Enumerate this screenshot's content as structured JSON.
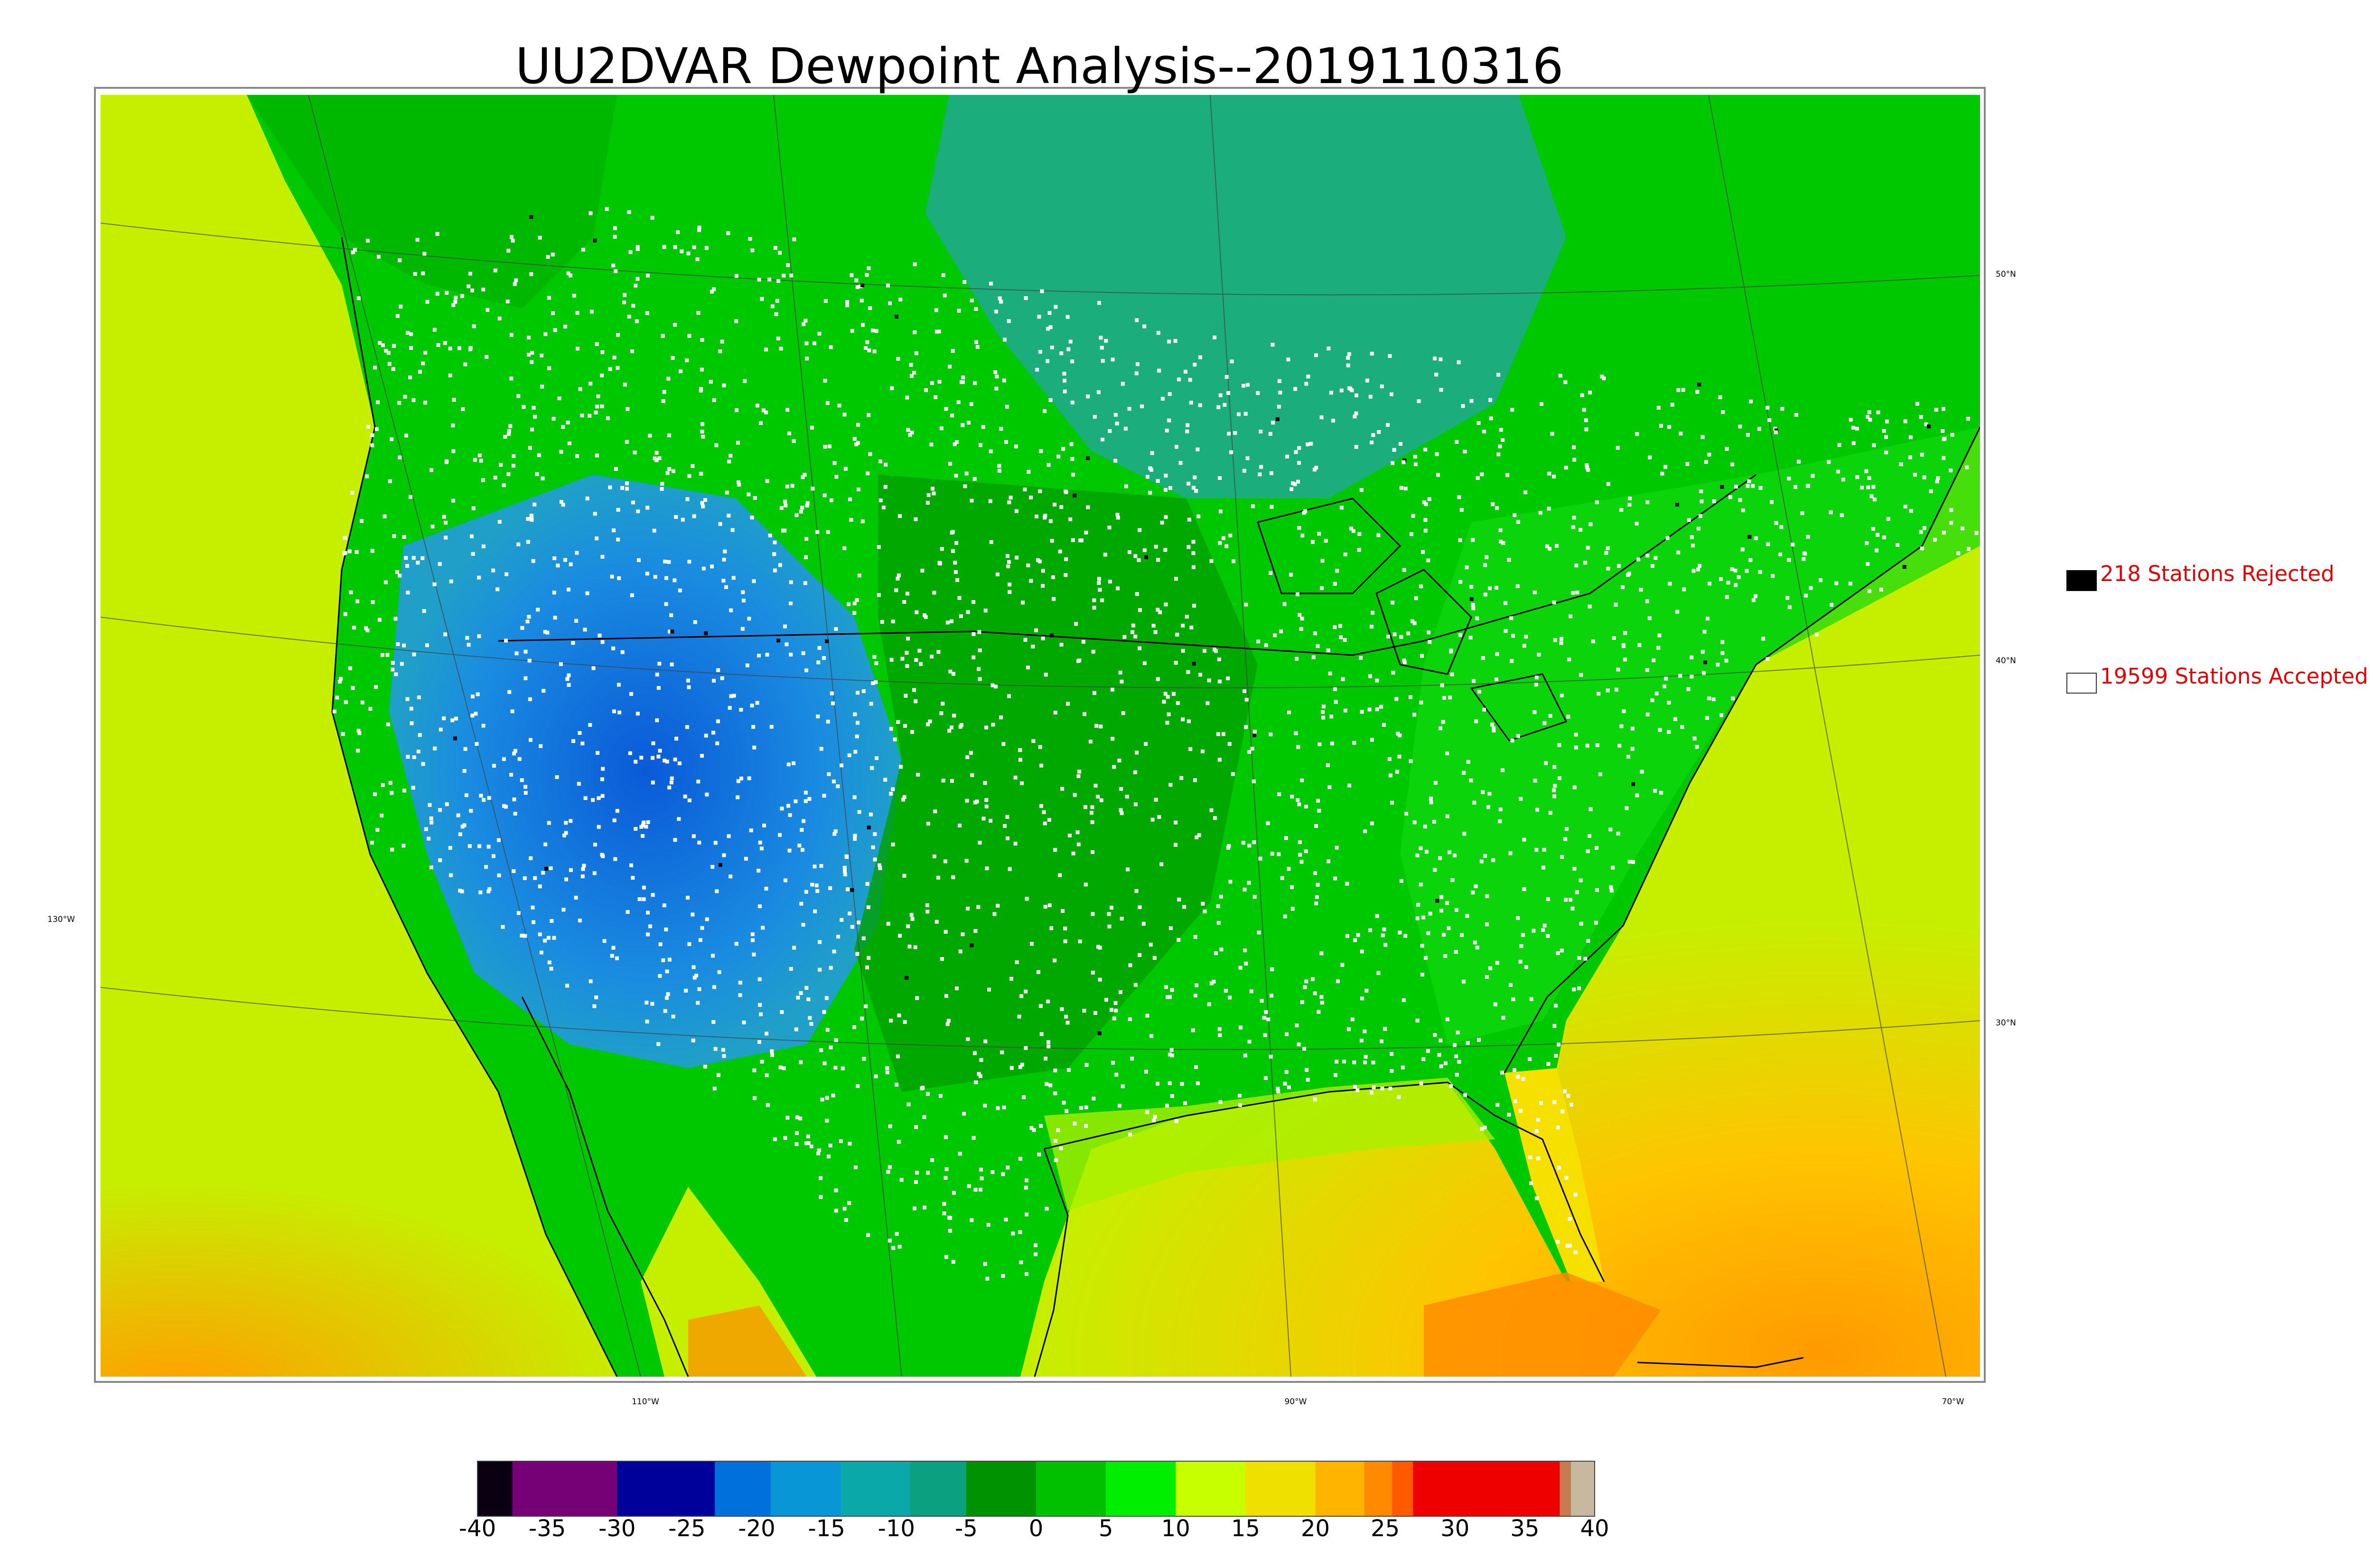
{
  "title": "UU2DVAR Dewpoint Analysis--2019110316",
  "latitude_labels": [
    "50°N",
    "40°N",
    "30°N"
  ],
  "longitude_labels": [
    "130°W",
    "110°W",
    "90°W",
    "70°W"
  ],
  "legend": {
    "rejected_label": "218 Stations Rejected",
    "accepted_label": "19599 Stations Accepted",
    "rejected_count": 218,
    "accepted_count": 19599,
    "rejected_swatch_color": "#000000",
    "accepted_swatch_color": "#ffffff",
    "text_color": "#e00000"
  },
  "colorbar": {
    "tick_labels": [
      "-40",
      "-35",
      "-30",
      "-25",
      "-20",
      "-15",
      "-10",
      "-5",
      "0",
      "5",
      "10",
      "15",
      "20",
      "25",
      "30",
      "35",
      "40"
    ],
    "min": -40,
    "max": 40,
    "stops": [
      {
        "from": -40,
        "to": -37.5,
        "color": "#0a0012"
      },
      {
        "from": -37.5,
        "to": -30,
        "color": "#760075"
      },
      {
        "from": -30,
        "to": -23,
        "color": "#00009a"
      },
      {
        "from": -23,
        "to": -19,
        "color": "#0070dd"
      },
      {
        "from": -19,
        "to": -14,
        "color": "#0996d6"
      },
      {
        "from": -14,
        "to": -9,
        "color": "#0aa8a8"
      },
      {
        "from": -9,
        "to": -5,
        "color": "#0aa080"
      },
      {
        "from": -5,
        "to": 0,
        "color": "#009200"
      },
      {
        "from": 0,
        "to": 5,
        "color": "#00c000"
      },
      {
        "from": 5,
        "to": 10,
        "color": "#00ee00"
      },
      {
        "from": 10,
        "to": 15,
        "color": "#c8ff00"
      },
      {
        "from": 15,
        "to": 20,
        "color": "#f0e000"
      },
      {
        "from": 20,
        "to": 23.5,
        "color": "#ffb400"
      },
      {
        "from": 23.5,
        "to": 25.5,
        "color": "#ff8a00"
      },
      {
        "from": 25.5,
        "to": 27,
        "color": "#ff5a00"
      },
      {
        "from": 27,
        "to": 37.5,
        "color": "#ee0000"
      },
      {
        "from": 37.5,
        "to": 38.3,
        "color": "#c87a50"
      },
      {
        "from": 38.3,
        "to": 40,
        "color": "#c8b8a0"
      }
    ]
  },
  "colors": {
    "ocean_west": "#c8f000",
    "ocean_south_east": "#ffb200",
    "land_green": "#00c800",
    "canada_teal": "#20a890",
    "interior_blue": "#1e90e0",
    "station_accepted": "#ffffff",
    "station_rejected": "#000000"
  }
}
